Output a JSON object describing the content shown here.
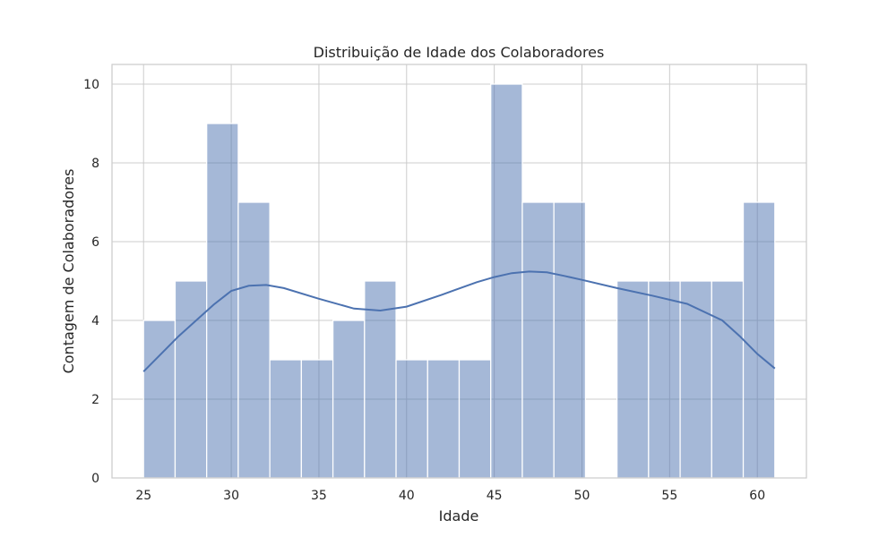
{
  "chart_data": {
    "type": "bar",
    "subtype": "histogram",
    "title": "Distribuição de Idade dos Colaboradores",
    "xlabel": "Idade",
    "ylabel": "Contagem de Colaboradores",
    "xlim": [
      23.2,
      62.8
    ],
    "ylim": [
      0,
      10.5
    ],
    "xticks": [
      25,
      30,
      35,
      40,
      45,
      50,
      55,
      60
    ],
    "yticks": [
      0,
      2,
      4,
      6,
      8,
      10
    ],
    "grid": true,
    "bin_edges": [
      25,
      26.8,
      28.6,
      30.4,
      32.2,
      34.0,
      35.8,
      37.6,
      39.4,
      41.2,
      43.0,
      44.8,
      46.6,
      48.4,
      50.2,
      52.0,
      53.8,
      55.6,
      57.4,
      59.2,
      61.0
    ],
    "counts": [
      4,
      5,
      9,
      7,
      3,
      3,
      4,
      5,
      3,
      3,
      3,
      10,
      7,
      7,
      0,
      5,
      5,
      5,
      5,
      7
    ],
    "kde": {
      "x": [
        25,
        27,
        29,
        30,
        31,
        32,
        33,
        35,
        37,
        38.5,
        40,
        42,
        44,
        45,
        46,
        47,
        48,
        49,
        50,
        52,
        54,
        56,
        58,
        59,
        60,
        61
      ],
      "y": [
        2.7,
        3.6,
        4.4,
        4.75,
        4.88,
        4.9,
        4.82,
        4.55,
        4.3,
        4.25,
        4.35,
        4.65,
        4.97,
        5.1,
        5.2,
        5.24,
        5.22,
        5.13,
        5.03,
        4.82,
        4.63,
        4.42,
        4.0,
        3.6,
        3.15,
        2.78
      ]
    },
    "colors": {
      "bar": "#4c72b0",
      "grid": "#cccccc"
    }
  }
}
